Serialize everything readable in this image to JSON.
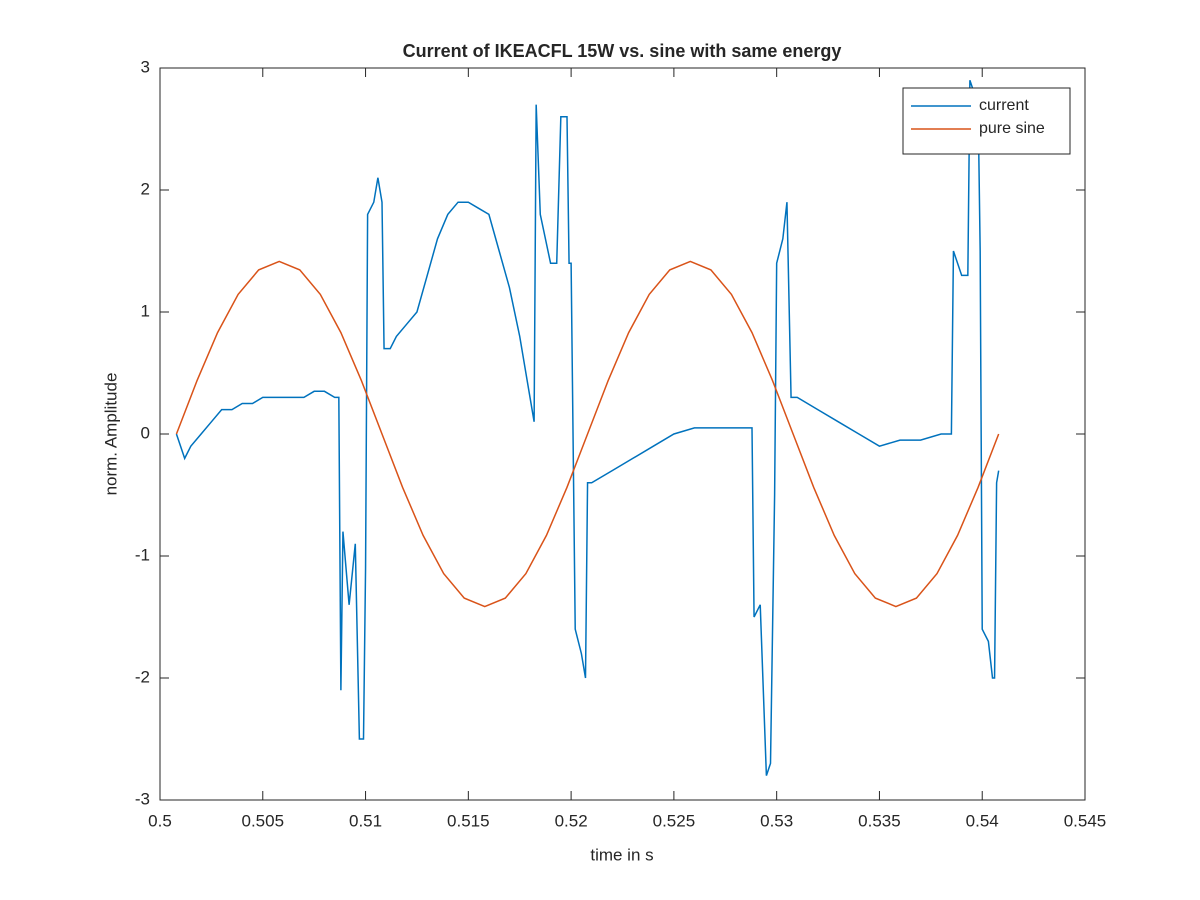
{
  "chart_data": {
    "type": "line",
    "title": "Current of IKEACFL 15W vs. sine with same energy",
    "xlabel": "time in s",
    "ylabel": "norm. Amplitude",
    "xlim": [
      0.5,
      0.545
    ],
    "xticks": [
      0.5,
      0.505,
      0.51,
      0.515,
      0.52,
      0.525,
      0.53,
      0.535,
      0.54,
      0.545
    ],
    "ylim": [
      -3,
      3
    ],
    "yticks": [
      -3,
      -2,
      -1,
      0,
      1,
      2,
      3
    ],
    "grid": false,
    "legend": "northeast",
    "series": [
      {
        "name": "current",
        "color": "#0072BD",
        "x": [
          0.5008,
          0.5012,
          0.5015,
          0.502,
          0.5025,
          0.503,
          0.5035,
          0.504,
          0.5045,
          0.505,
          0.5055,
          0.506,
          0.5065,
          0.507,
          0.5075,
          0.508,
          0.5085,
          0.5087,
          0.5088,
          0.5089,
          0.5092,
          0.5095,
          0.5097,
          0.5099,
          0.51,
          0.5101,
          0.5104,
          0.5106,
          0.5108,
          0.5109,
          0.5112,
          0.5115,
          0.512,
          0.5125,
          0.513,
          0.5135,
          0.514,
          0.5145,
          0.515,
          0.5155,
          0.516,
          0.5165,
          0.517,
          0.5175,
          0.518,
          0.5182,
          0.5183,
          0.5185,
          0.519,
          0.5193,
          0.5195,
          0.5198,
          0.5199,
          0.52,
          0.5202,
          0.5205,
          0.5207,
          0.5208,
          0.521,
          0.522,
          0.523,
          0.524,
          0.525,
          0.526,
          0.527,
          0.528,
          0.5288,
          0.5289,
          0.5292,
          0.5295,
          0.5297,
          0.5299,
          0.53,
          0.5303,
          0.5305,
          0.5307,
          0.531,
          0.532,
          0.533,
          0.534,
          0.535,
          0.536,
          0.537,
          0.538,
          0.5385,
          0.5386,
          0.539,
          0.5393,
          0.5394,
          0.5398,
          0.5399,
          0.54,
          0.5403,
          0.5405,
          0.5406,
          0.5407,
          0.5408
        ],
        "values": [
          0.0,
          -0.2,
          -0.1,
          0.0,
          0.1,
          0.2,
          0.2,
          0.25,
          0.25,
          0.3,
          0.3,
          0.3,
          0.3,
          0.3,
          0.35,
          0.35,
          0.3,
          0.3,
          -2.1,
          -0.8,
          -1.4,
          -0.9,
          -2.5,
          -2.5,
          -1.1,
          1.8,
          1.9,
          2.1,
          1.9,
          0.7,
          0.7,
          0.8,
          0.9,
          1.0,
          1.3,
          1.6,
          1.8,
          1.9,
          1.9,
          1.85,
          1.8,
          1.5,
          1.2,
          0.8,
          0.3,
          0.1,
          2.7,
          1.8,
          1.4,
          1.4,
          2.6,
          2.6,
          1.4,
          1.4,
          -1.6,
          -1.8,
          -2.0,
          -0.4,
          -0.4,
          -0.3,
          -0.2,
          -0.1,
          0.0,
          0.05,
          0.05,
          0.05,
          0.05,
          -1.5,
          -1.4,
          -2.8,
          -2.7,
          -0.5,
          1.4,
          1.6,
          1.9,
          0.3,
          0.3,
          0.2,
          0.1,
          0.0,
          -0.1,
          -0.05,
          -0.05,
          0.0,
          0.0,
          1.5,
          1.3,
          1.3,
          2.9,
          2.7,
          1.5,
          -1.6,
          -1.7,
          -2.0,
          -2.0,
          -0.4,
          -0.3
        ]
      },
      {
        "name": "pure sine",
        "color": "#D95319",
        "x": [
          0.5008,
          0.5018,
          0.5028,
          0.5038,
          0.5048,
          0.5058,
          0.5068,
          0.5078,
          0.5088,
          0.5098,
          0.5108,
          0.5118,
          0.5128,
          0.5138,
          0.5148,
          0.5158,
          0.5168,
          0.5178,
          0.5188,
          0.5198,
          0.5208,
          0.5218,
          0.5228,
          0.5238,
          0.5248,
          0.5258,
          0.5268,
          0.5278,
          0.5288,
          0.5298,
          0.5308,
          0.5318,
          0.5328,
          0.5338,
          0.5348,
          0.5358,
          0.5368,
          0.5378,
          0.5388,
          0.5398,
          0.5408
        ],
        "values": [
          0,
          0.437,
          0.831,
          1.144,
          1.345,
          1.414,
          1.345,
          1.144,
          0.831,
          0.437,
          0,
          -0.437,
          -0.831,
          -1.144,
          -1.345,
          -1.414,
          -1.345,
          -1.144,
          -0.831,
          -0.437,
          0,
          0.437,
          0.831,
          1.144,
          1.345,
          1.414,
          1.345,
          1.144,
          0.831,
          0.437,
          0,
          -0.437,
          -0.831,
          -1.144,
          -1.345,
          -1.414,
          -1.345,
          -1.144,
          -0.831,
          -0.437,
          0
        ]
      }
    ]
  }
}
